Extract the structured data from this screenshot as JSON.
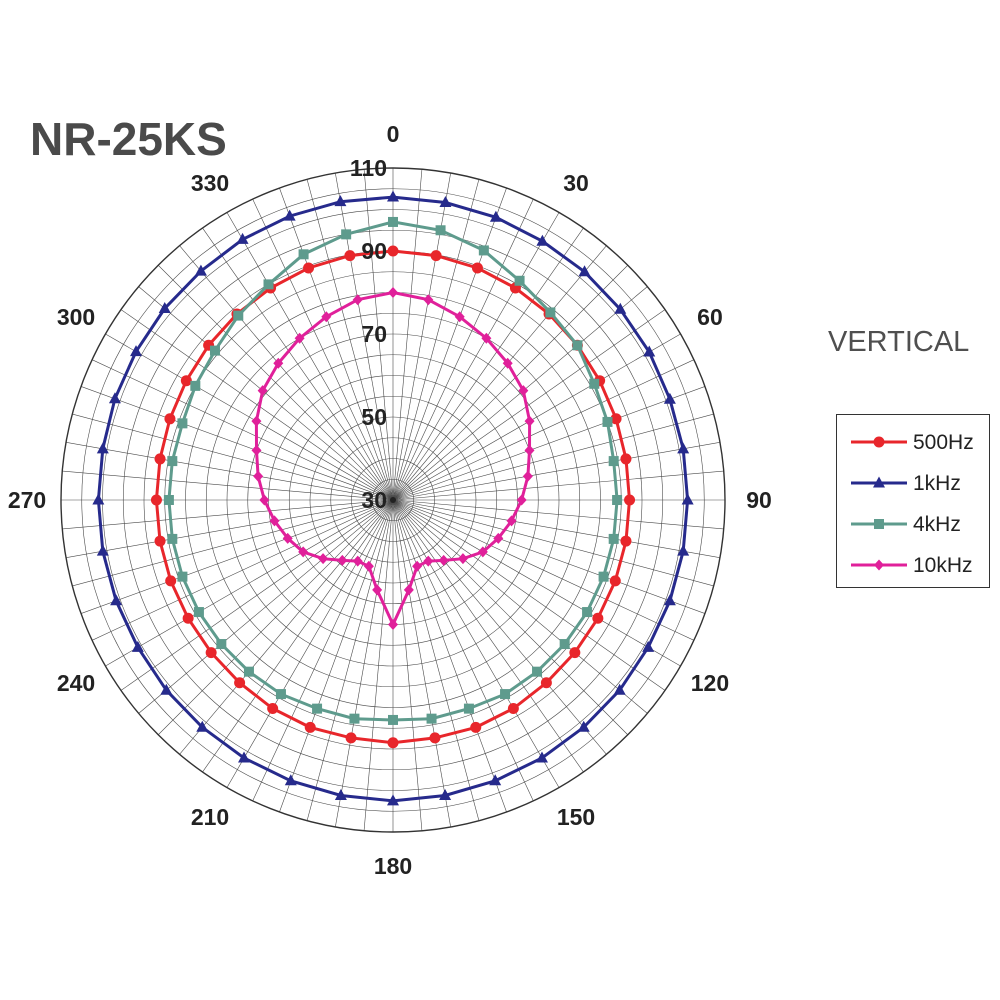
{
  "title": "NR-25KS",
  "orientation": "VERTICAL",
  "colors": {
    "500Hz": "#e8262b",
    "1kHz": "#262a8c",
    "4kHz": "#5e9b8d",
    "10kHz": "#e0209a",
    "grid": "#4a4a4a"
  },
  "chart_data": {
    "type": "polar",
    "angle_ticks": [
      "0",
      "30",
      "60",
      "90",
      "120",
      "150",
      "180",
      "210",
      "240",
      "270",
      "300",
      "330"
    ],
    "radial_ticks": [
      "30",
      "50",
      "70",
      "90",
      "110"
    ],
    "radial_range": [
      30,
      110
    ],
    "angles": [
      0,
      10,
      20,
      30,
      40,
      50,
      60,
      70,
      80,
      90,
      100,
      110,
      120,
      130,
      140,
      150,
      160,
      170,
      180,
      190,
      200,
      210,
      220,
      230,
      240,
      250,
      260,
      270,
      280,
      290,
      300,
      310,
      320,
      330,
      340,
      350
    ],
    "series": [
      {
        "name": "500Hz",
        "marker": "circle",
        "values": [
          90,
          89.8,
          89.5,
          89,
          88.5,
          88,
          87.5,
          87.2,
          87,
          87,
          87,
          87,
          87,
          87.2,
          87.5,
          88,
          88.3,
          88.2,
          88.5,
          88.2,
          88.3,
          88,
          87.5,
          87.2,
          87,
          87,
          87,
          87,
          87,
          87.2,
          87.5,
          88,
          88.5,
          89,
          89.5,
          89.8
        ]
      },
      {
        "name": "1kHz",
        "marker": "triangle",
        "values": [
          103,
          102.8,
          102.5,
          102,
          101.8,
          101.5,
          101.3,
          101,
          101,
          101,
          101,
          101,
          101,
          101.3,
          101.5,
          101.8,
          102,
          102.3,
          102.5,
          102.3,
          102,
          101.8,
          101.5,
          101.3,
          101,
          101,
          101,
          101,
          101,
          101.3,
          101.5,
          101.8,
          102,
          102.5,
          102.8,
          103
        ]
      },
      {
        "name": "4kHz",
        "marker": "square",
        "values": [
          97,
          96,
          94,
          91,
          89,
          88,
          86,
          85,
          84,
          84,
          84,
          84,
          84,
          84,
          84,
          84,
          83.5,
          83.5,
          83,
          83.5,
          83.5,
          84,
          84,
          84,
          84,
          84,
          84,
          84,
          84,
          84,
          85,
          86,
          88,
          90,
          93,
          95
        ]
      },
      {
        "name": "10kHz",
        "marker": "diamond",
        "values": [
          80,
          79,
          77,
          75,
          73,
          71,
          68,
          65,
          63,
          61,
          59,
          57,
          55,
          52,
          49,
          47,
          47,
          52,
          60,
          52,
          47,
          47,
          49,
          52,
          55,
          57,
          59,
          61,
          63,
          65,
          68,
          71,
          73,
          75,
          77,
          79
        ]
      }
    ]
  }
}
